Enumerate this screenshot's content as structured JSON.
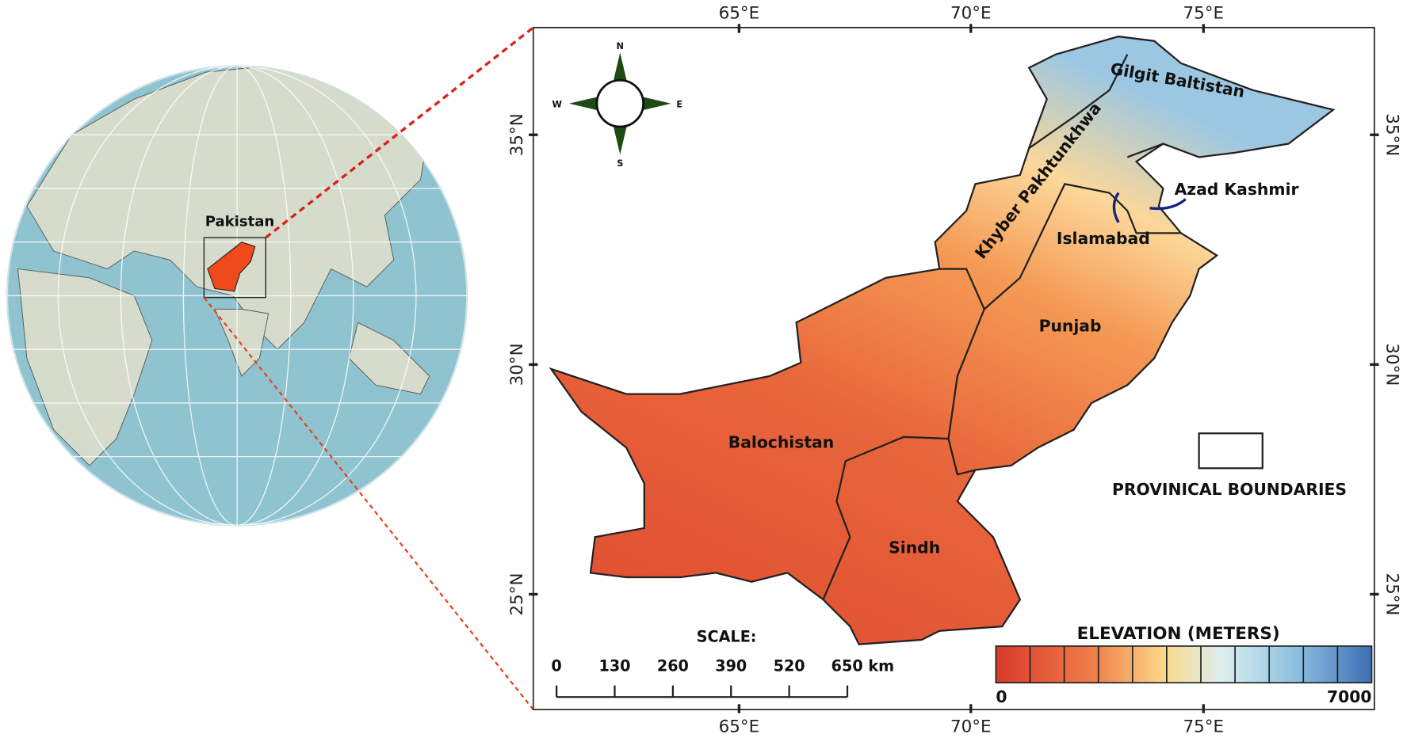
{
  "globe": {
    "label": "Pakistan"
  },
  "map": {
    "longitude_labels": [
      "65°E",
      "70°E",
      "75°E"
    ],
    "latitude_labels": [
      "35°N",
      "30°N",
      "25°N"
    ],
    "regions": [
      "Gilgit Baltistan",
      "Khyber Pakhtunkhwa",
      "Azad Kashmir",
      "Islamabad",
      "Punjab",
      "Balochistan",
      "Sindh"
    ],
    "compass": {
      "north": "N",
      "east": "E",
      "south": "S",
      "west": "W"
    },
    "boundary_legend": "PROVINICAL BOUNDARIES",
    "scale": {
      "title": "SCALE:",
      "ticks": [
        "0",
        "130",
        "260",
        "390",
        "520",
        "650 km"
      ]
    },
    "elevation_legend": {
      "title": "ELEVATION (METERS)",
      "min": 0,
      "max": 7000
    }
  }
}
